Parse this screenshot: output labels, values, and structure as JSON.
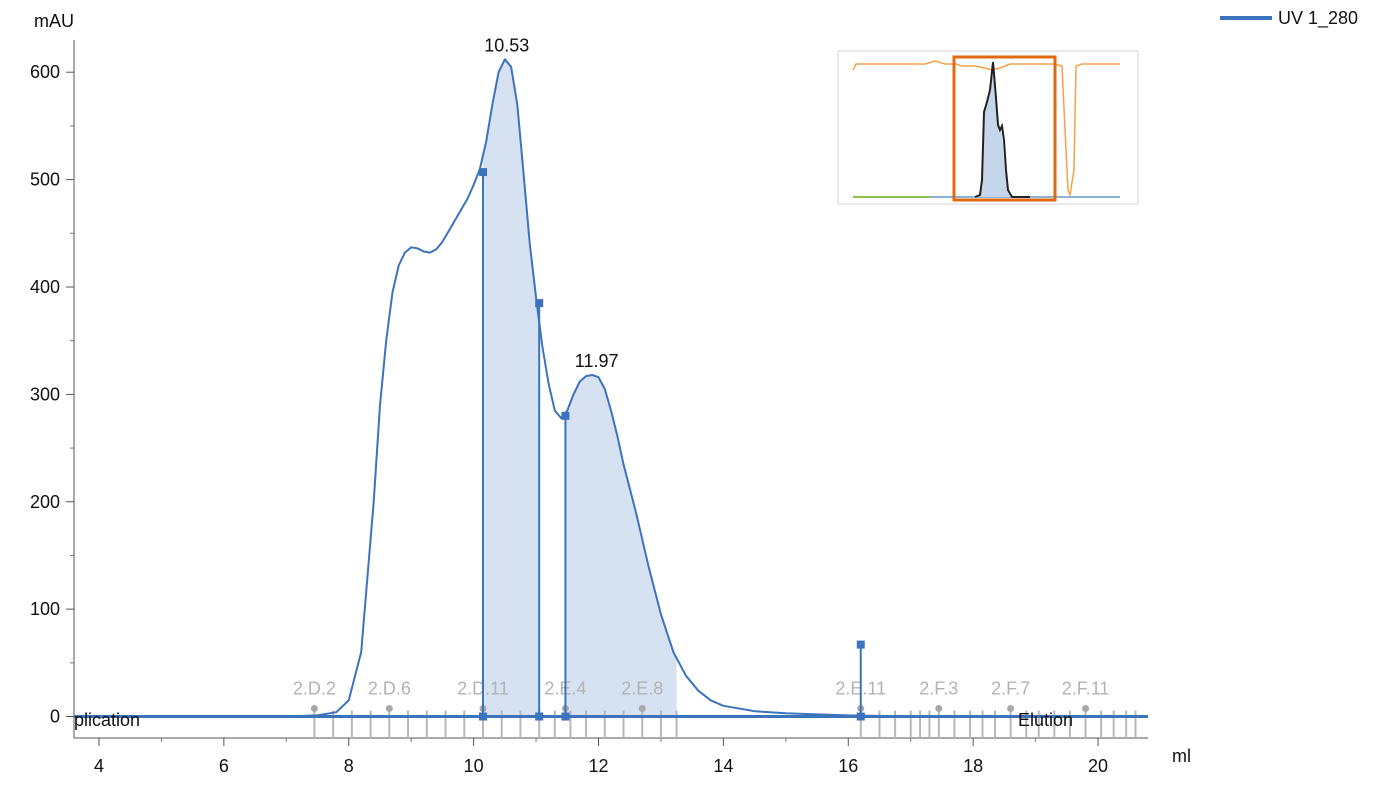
{
  "chart_data": {
    "type": "line",
    "ylabel": "mAU",
    "xlabel": "ml",
    "xlim": [
      3.6,
      20.8
    ],
    "ylim": [
      -20,
      630
    ],
    "x_ticks": [
      4,
      6,
      8,
      10,
      12,
      14,
      16,
      18,
      20
    ],
    "y_ticks": [
      0,
      100,
      200,
      300,
      400,
      500,
      600
    ],
    "legend": {
      "position": "top-right",
      "entries": [
        {
          "name": "UV 1_280",
          "color": "#3c73bd"
        }
      ]
    },
    "series": [
      {
        "name": "UV 1_280",
        "color": "#3c73bd",
        "x": [
          3.6,
          7.0,
          7.5,
          7.8,
          8.0,
          8.2,
          8.4,
          8.5,
          8.6,
          8.7,
          8.8,
          8.9,
          9.0,
          9.1,
          9.2,
          9.3,
          9.4,
          9.5,
          9.6,
          9.7,
          9.8,
          9.9,
          10.0,
          10.1,
          10.2,
          10.3,
          10.4,
          10.5,
          10.6,
          10.7,
          10.8,
          10.9,
          11.0,
          11.1,
          11.2,
          11.3,
          11.4,
          11.5,
          11.6,
          11.7,
          11.8,
          11.9,
          12.0,
          12.1,
          12.2,
          12.3,
          12.4,
          12.6,
          12.8,
          13.0,
          13.2,
          13.4,
          13.6,
          13.8,
          14.0,
          14.5,
          15.0,
          15.5,
          16.0,
          17.0,
          18.0,
          19.0,
          20.8
        ],
        "y": [
          0,
          0,
          1,
          4,
          15,
          60,
          200,
          290,
          350,
          395,
          420,
          432,
          437,
          436,
          433,
          432,
          435,
          442,
          452,
          462,
          472,
          482,
          495,
          510,
          535,
          570,
          600,
          612,
          605,
          570,
          505,
          440,
          390,
          345,
          310,
          285,
          278,
          285,
          300,
          312,
          317,
          318,
          316,
          305,
          285,
          262,
          235,
          190,
          140,
          95,
          60,
          38,
          24,
          15,
          10,
          5,
          3,
          2,
          1,
          0,
          0,
          0,
          0
        ]
      }
    ],
    "peak_labels": [
      {
        "x": 10.53,
        "y": 612,
        "text": "10.53"
      },
      {
        "x": 11.97,
        "y": 318,
        "text": "11.97"
      }
    ],
    "shaded_regions": [
      {
        "from": 10.15,
        "to": 11.05
      },
      {
        "from": 11.47,
        "to": 13.25
      }
    ],
    "integration_markers": [
      {
        "x": 10.15,
        "y": 507
      },
      {
        "x": 11.05,
        "y": 385
      },
      {
        "x": 11.47,
        "y": 280
      },
      {
        "x": 16.2,
        "y": 67
      }
    ],
    "fraction_ticks": [
      7.45,
      7.75,
      8.05,
      8.35,
      8.65,
      8.95,
      9.25,
      9.55,
      9.85,
      10.15,
      10.45,
      10.75,
      11.05,
      11.3,
      11.55,
      11.8,
      12.1,
      12.4,
      12.7,
      13.0,
      13.25,
      16.2,
      16.5,
      16.75,
      17.0,
      17.15,
      17.3,
      17.45,
      17.7,
      17.95,
      18.15,
      18.35,
      18.6,
      18.85,
      19.05,
      19.3,
      19.55,
      19.8,
      20.05,
      20.25,
      20.45,
      20.6
    ],
    "fraction_labels": [
      {
        "x": 7.45,
        "text": "2.D.2"
      },
      {
        "x": 8.65,
        "text": "2.D.6"
      },
      {
        "x": 10.15,
        "text": "2.D.11"
      },
      {
        "x": 11.47,
        "text": "2.E.4"
      },
      {
        "x": 12.7,
        "text": "2.E.8"
      },
      {
        "x": 16.2,
        "text": "2.E.11"
      },
      {
        "x": 17.45,
        "text": "2.F.3"
      },
      {
        "x": 18.6,
        "text": "2.F.7"
      },
      {
        "x": 19.8,
        "text": "2.F.11"
      }
    ],
    "event_labels": {
      "left": "plication",
      "right": "Elution"
    },
    "overview": {
      "visible": true,
      "selection_color": "#e06a10"
    }
  }
}
